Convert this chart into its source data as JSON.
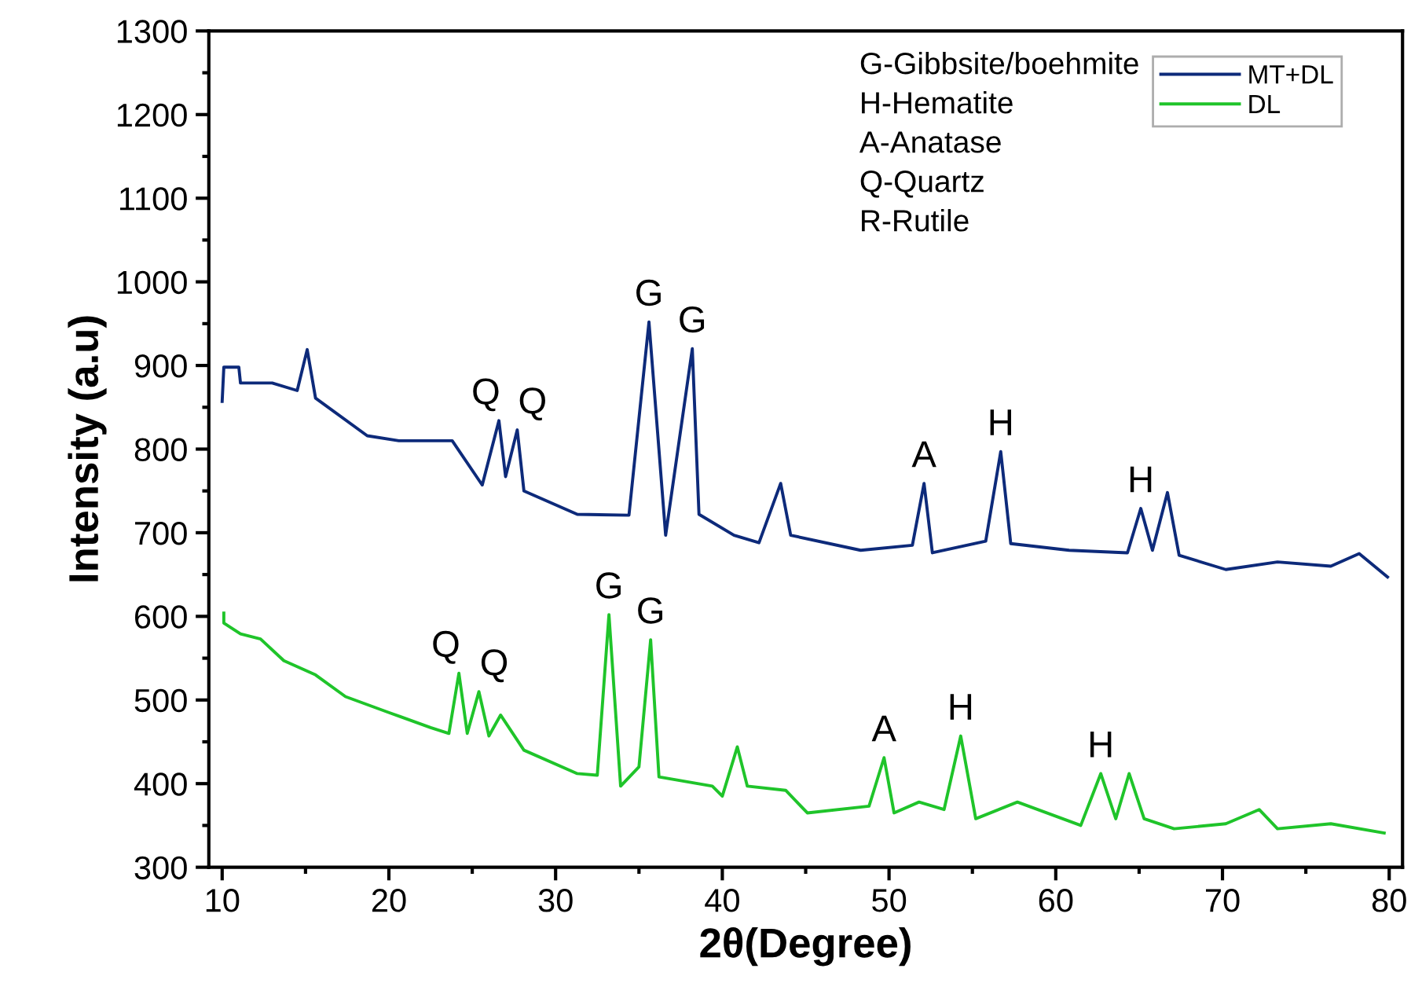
{
  "chart_data": {
    "type": "line",
    "xlabel": "2θ(Degree)",
    "ylabel": "Intensity (a.u)",
    "xlim": [
      9.2,
      80.8
    ],
    "xticks": [
      10,
      20,
      30,
      40,
      50,
      60,
      70,
      80
    ],
    "ylim": [
      300,
      1300
    ],
    "yticks": [
      300,
      400,
      500,
      600,
      700,
      800,
      900,
      1000,
      1100,
      1200,
      1300
    ],
    "grid": false,
    "legend": "top right",
    "marker": "none",
    "line_style": "solid",
    "series": [
      {
        "name": "MT+DL",
        "color": "#0d2a7a",
        "x": [
          10.0,
          10.1,
          11.0,
          11.1,
          13.0,
          14.5,
          15.1,
          15.6,
          18.7,
          20.6,
          23.8,
          25.6,
          26.6,
          27.0,
          27.7,
          28.1,
          31.3,
          34.4,
          35.6,
          36.6,
          38.2,
          38.6,
          40.7,
          42.2,
          43.5,
          44.1,
          48.3,
          51.4,
          52.1,
          52.6,
          55.8,
          56.7,
          57.3,
          60.8,
          64.3,
          65.1,
          65.8,
          66.7,
          67.4,
          70.2,
          73.3,
          76.5,
          78.2,
          79.9
        ],
        "values": [
          857,
          898,
          898,
          879,
          879,
          870,
          919,
          861,
          816,
          810,
          810,
          757,
          834,
          767,
          823,
          750,
          722,
          721,
          952,
          697,
          920,
          722,
          697,
          688,
          759,
          697,
          679,
          685,
          759,
          676,
          690,
          797,
          687,
          679,
          676,
          729,
          679,
          748,
          673,
          656,
          665,
          660,
          675,
          647
        ]
      },
      {
        "name": "DL",
        "color": "#1fc42a",
        "x": [
          10.1,
          10.1,
          11.1,
          12.3,
          13.7,
          15.6,
          17.4,
          20.0,
          22.5,
          23.6,
          24.2,
          24.7,
          25.4,
          26.0,
          26.7,
          28.1,
          31.3,
          32.5,
          33.2,
          33.9,
          35.0,
          35.7,
          36.2,
          39.4,
          40.0,
          40.9,
          41.5,
          43.8,
          45.1,
          48.8,
          49.7,
          50.3,
          51.8,
          53.3,
          54.3,
          55.2,
          57.7,
          61.5,
          62.7,
          63.6,
          64.4,
          65.3,
          67.1,
          70.2,
          72.2,
          73.3,
          76.5,
          79.7
        ],
        "values": [
          604,
          592,
          579,
          573,
          547,
          530,
          504,
          485,
          467,
          460,
          532,
          460,
          510,
          457,
          482,
          440,
          412,
          410,
          602,
          397,
          420,
          572,
          408,
          397,
          385,
          444,
          397,
          392,
          365,
          373,
          431,
          365,
          378,
          369,
          457,
          358,
          378,
          350,
          412,
          358,
          412,
          358,
          346,
          352,
          369,
          346,
          352,
          341
        ]
      }
    ],
    "annotations": [
      {
        "text": "Q",
        "x": 26.6,
        "y": 834
      },
      {
        "text": "Q",
        "x": 27.7,
        "y": 823
      },
      {
        "text": "G",
        "x": 35.6,
        "y": 952
      },
      {
        "text": "G",
        "x": 38.2,
        "y": 920
      },
      {
        "text": "A",
        "x": 52.1,
        "y": 759
      },
      {
        "text": "H",
        "x": 56.7,
        "y": 797
      },
      {
        "text": "H",
        "x": 65.1,
        "y": 729
      },
      {
        "text": "Q",
        "x": 24.2,
        "y": 532
      },
      {
        "text": "Q",
        "x": 25.4,
        "y": 510
      },
      {
        "text": "G",
        "x": 33.2,
        "y": 602
      },
      {
        "text": "G",
        "x": 35.7,
        "y": 572
      },
      {
        "text": "A",
        "x": 49.7,
        "y": 431
      },
      {
        "text": "H",
        "x": 54.3,
        "y": 457
      },
      {
        "text": "H",
        "x": 62.7,
        "y": 412
      },
      "G-Gibbsite/boehmite",
      "H-Hematite",
      "A-Anatase",
      "Q-Quartz",
      "R-Rutile"
    ]
  }
}
